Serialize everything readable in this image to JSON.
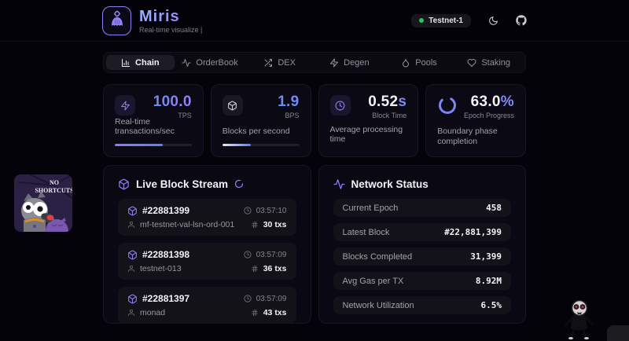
{
  "header": {
    "title": "Miris",
    "subtitle": "Real-time visualize |",
    "badge": "Testnet-1",
    "icons": {
      "logo": "miris-creature",
      "theme": "moon",
      "repo": "github"
    }
  },
  "tabs": [
    {
      "label": "Chain",
      "icon": "bar-chart",
      "active": true
    },
    {
      "label": "OrderBook",
      "icon": "activity",
      "active": false
    },
    {
      "label": "DEX",
      "icon": "shuffle",
      "active": false
    },
    {
      "label": "Degen",
      "icon": "zap",
      "active": false
    },
    {
      "label": "Pools",
      "icon": "droplet",
      "active": false
    },
    {
      "label": "Staking",
      "icon": "heart",
      "active": false
    }
  ],
  "stats": [
    {
      "icon": "zap",
      "value": "100.0",
      "suffix": "",
      "label": "TPS",
      "desc": "Real-time transactions/sec",
      "progress": 62
    },
    {
      "icon": "cube",
      "value": "1.9",
      "suffix": "",
      "label": "BPS",
      "desc": "Blocks per second",
      "progress": 37
    },
    {
      "icon": "clock",
      "value": "0.52",
      "suffix": "s",
      "label": "Block Time",
      "desc": "Average processing time"
    },
    {
      "icon": "spinner",
      "value": "63.0",
      "suffix": "%",
      "label": "Epoch Progress",
      "desc": "Boundary phase completion"
    }
  ],
  "block_stream": {
    "title": "Live Block Stream",
    "blocks": [
      {
        "number": "#22881399",
        "validator": "mf-testnet-val-lsn-ord-001",
        "time": "03:57:10",
        "txs": "30 txs"
      },
      {
        "number": "#22881398",
        "validator": "testnet-013",
        "time": "03:57:09",
        "txs": "36 txs"
      },
      {
        "number": "#22881397",
        "validator": "monad",
        "time": "03:57:09",
        "txs": "43 txs"
      }
    ]
  },
  "network_status": {
    "title": "Network Status",
    "rows": [
      {
        "label": "Current Epoch",
        "value": "458"
      },
      {
        "label": "Latest Block",
        "value": "#22,881,399"
      },
      {
        "label": "Blocks Completed",
        "value": "31,399"
      },
      {
        "label": "Avg Gas per TX",
        "value": "8.92M"
      },
      {
        "label": "Network Utilization",
        "value": "6.5%"
      }
    ]
  },
  "overlays": {
    "sticker_line1": "NO",
    "sticker_line2": "SHORTCUTS"
  },
  "colors": {
    "accent_purple": "#8b7cf7",
    "accent_blue": "#5d7ef9",
    "status_green": "#22c55e"
  }
}
